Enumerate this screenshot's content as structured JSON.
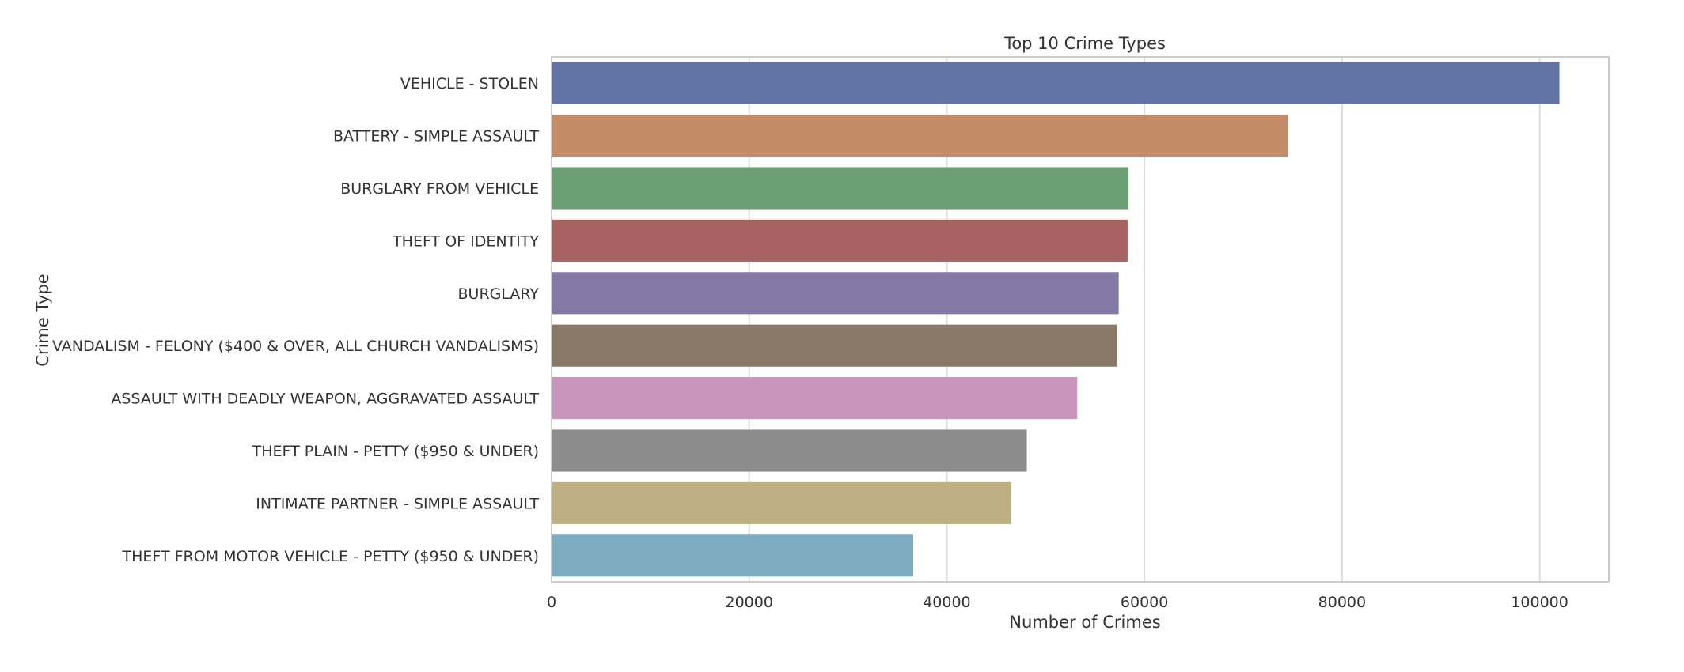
{
  "chart_data": {
    "type": "bar",
    "orientation": "horizontal",
    "title": "Top 10 Crime Types",
    "xlabel": "Number of Crimes",
    "ylabel": "Crime Type",
    "xlim": [
      0,
      107000
    ],
    "xticks": [
      0,
      20000,
      40000,
      60000,
      80000,
      100000
    ],
    "grid": "x",
    "categories": [
      "VEHICLE - STOLEN",
      "BATTERY - SIMPLE ASSAULT",
      "BURGLARY FROM VEHICLE",
      "THEFT OF IDENTITY",
      "BURGLARY",
      "VANDALISM - FELONY ($400 & OVER, ALL CHURCH VANDALISMS)",
      "ASSAULT WITH DEADLY WEAPON, AGGRAVATED ASSAULT",
      "THEFT PLAIN - PETTY ($950 & UNDER)",
      "INTIMATE PARTNER - SIMPLE ASSAULT",
      "THEFT FROM MOTOR VEHICLE - PETTY ($950 & UNDER)"
    ],
    "values": [
      102000,
      74500,
      58400,
      58300,
      57400,
      57200,
      53200,
      48100,
      46500,
      36600
    ],
    "colors": [
      "#6274a3",
      "#c48c66",
      "#6b9e72",
      "#a96262",
      "#8479a6",
      "#8a7867",
      "#c895be",
      "#8c8c8c",
      "#bfb083",
      "#7eacc0"
    ]
  }
}
